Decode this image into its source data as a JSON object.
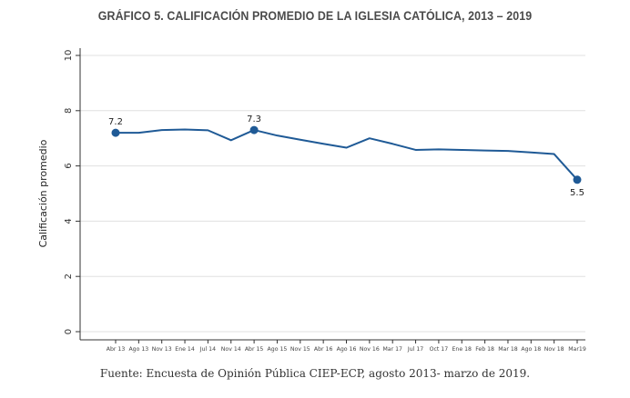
{
  "chart_data": {
    "type": "line",
    "title": "GRÁFICO 5. CALIFICACIÓN PROMEDIO DE LA IGLESIA CATÓLICA, 2013 – 2019",
    "xlabel": "",
    "ylabel": "Calificación promedio",
    "ylim": [
      0,
      10
    ],
    "yticks": [
      0,
      2,
      4,
      6,
      8,
      10
    ],
    "grid": true,
    "legend": "none",
    "categories": [
      "Abr 13",
      "Ago 13",
      "Nov 13",
      "Ene 14",
      "Jul 14",
      "Nov 14",
      "Abr 15",
      "Ago 15",
      "Nov 15",
      "Abr 16",
      "Ago 16",
      "Nov 16",
      "Mar 17",
      "Jul 17",
      "Oct 17",
      "Ene 18",
      "Feb 18",
      "Mar 18",
      "Ago 18",
      "Nov 18",
      "Mar19"
    ],
    "series": [
      {
        "name": "Calificación promedio",
        "color": "#1f5a96",
        "values": [
          7.2,
          7.2,
          7.3,
          7.32,
          7.29,
          6.93,
          7.3,
          7.1,
          6.95,
          6.8,
          6.66,
          7.0,
          6.8,
          6.58,
          6.6,
          6.58,
          6.56,
          6.54,
          6.49,
          6.43,
          5.5
        ]
      }
    ],
    "annotations": [
      {
        "category": "Abr 13",
        "text": "7.2",
        "marker": true,
        "position": "above"
      },
      {
        "category": "Abr 15",
        "text": "7.3",
        "marker": true,
        "position": "above"
      },
      {
        "category": "Mar19",
        "text": "5.5",
        "marker": true,
        "position": "below"
      }
    ],
    "source": "Fuente: Encuesta de Opinión Pública CIEP-ECP, agosto 2013- marzo de 2019."
  },
  "colors": {
    "line": "#1f5a96",
    "grid": "#e0e0e0",
    "axis": "#333333"
  }
}
